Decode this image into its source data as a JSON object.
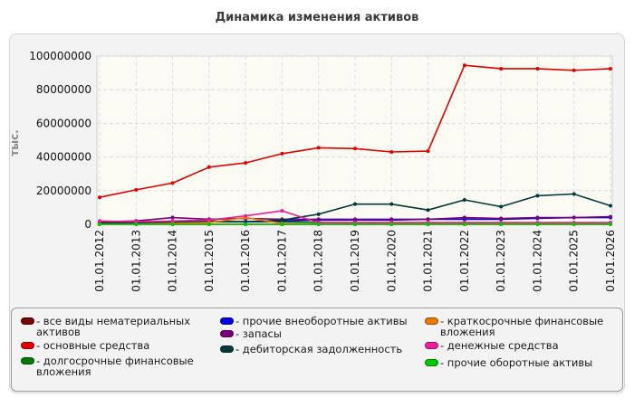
{
  "chart_data": {
    "type": "line",
    "title": "Динамика изменения активов",
    "ylabel": "тыс.",
    "xlabel": "",
    "ylim": [
      0,
      100000000
    ],
    "yticks": [
      "0",
      "20000000",
      "40000000",
      "60000000",
      "80000000",
      "100000000"
    ],
    "ytick_values": [
      0,
      20000000,
      40000000,
      60000000,
      80000000,
      100000000
    ],
    "categories": [
      "01.01.2012",
      "01.01.2013",
      "01.01.2014",
      "01.01.2015",
      "01.01.2016",
      "01.01.2017",
      "01.01.2018",
      "01.01.2019",
      "01.01.2020",
      "01.01.2021",
      "01.01.2022",
      "01.01.2023",
      "01.01.2024",
      "01.01.2025",
      "01.01.2026"
    ],
    "grid": true,
    "legend_position": "bottom",
    "series": [
      {
        "name": "- все виды нематериальных\nактивов",
        "color": "#7a0000",
        "values": [
          0,
          0,
          0,
          0,
          0,
          0,
          0,
          0,
          0,
          0,
          0,
          0,
          0,
          0,
          0
        ]
      },
      {
        "name": "- основные средства",
        "color": "#e30000",
        "values": [
          16000000,
          20500000,
          24500000,
          34000000,
          36500000,
          42000000,
          45500000,
          45000000,
          43000000,
          43500000,
          94500000,
          92500000,
          92500000,
          91500000,
          92500000
        ]
      },
      {
        "name": "- долгосрочные финансовые\nвложения",
        "color": "#007a00",
        "values": [
          1000000,
          1000000,
          1500000,
          2000000,
          1500000,
          1500000,
          1000000,
          800000,
          800000,
          800000,
          800000,
          800000,
          800000,
          800000,
          800000
        ]
      },
      {
        "name": "- прочие внеоборотные активы",
        "color": "#0000e6",
        "values": [
          500000,
          1000000,
          1500000,
          1500000,
          1500000,
          2000000,
          2500000,
          2500000,
          2500000,
          3000000,
          3000000,
          3000000,
          3500000,
          4000000,
          4000000
        ]
      },
      {
        "name": "- запасы",
        "color": "#7a007a",
        "values": [
          1500000,
          2000000,
          4000000,
          3000000,
          3500000,
          3000000,
          3000000,
          3000000,
          3000000,
          3000000,
          4000000,
          3500000,
          4000000,
          4000000,
          4500000
        ]
      },
      {
        "name": "- дебиторская задолженность",
        "color": "#003a3a",
        "values": [
          500000,
          1000000,
          1000000,
          1500000,
          1500000,
          2500000,
          6000000,
          12000000,
          12000000,
          8500000,
          14500000,
          10500000,
          17000000,
          18000000,
          11000000
        ]
      },
      {
        "name": "- краткосрочные финансовые\nвложения",
        "color": "#f07800",
        "values": [
          0,
          0,
          500000,
          1000000,
          4000000,
          500000,
          0,
          0,
          0,
          0,
          0,
          0,
          0,
          0,
          0
        ]
      },
      {
        "name": "- денежные средства",
        "color": "#ec1e9a",
        "values": [
          2000000,
          1500000,
          2000000,
          2500000,
          5000000,
          8000000,
          1000000,
          1000000,
          1000000,
          1000000,
          1000000,
          1000000,
          1000000,
          1000000,
          1000000
        ]
      },
      {
        "name": "- прочие оборотные активы",
        "color": "#00c800",
        "values": [
          0,
          0,
          0,
          0,
          0,
          0,
          0,
          0,
          0,
          0,
          0,
          0,
          0,
          0,
          0
        ]
      }
    ]
  }
}
